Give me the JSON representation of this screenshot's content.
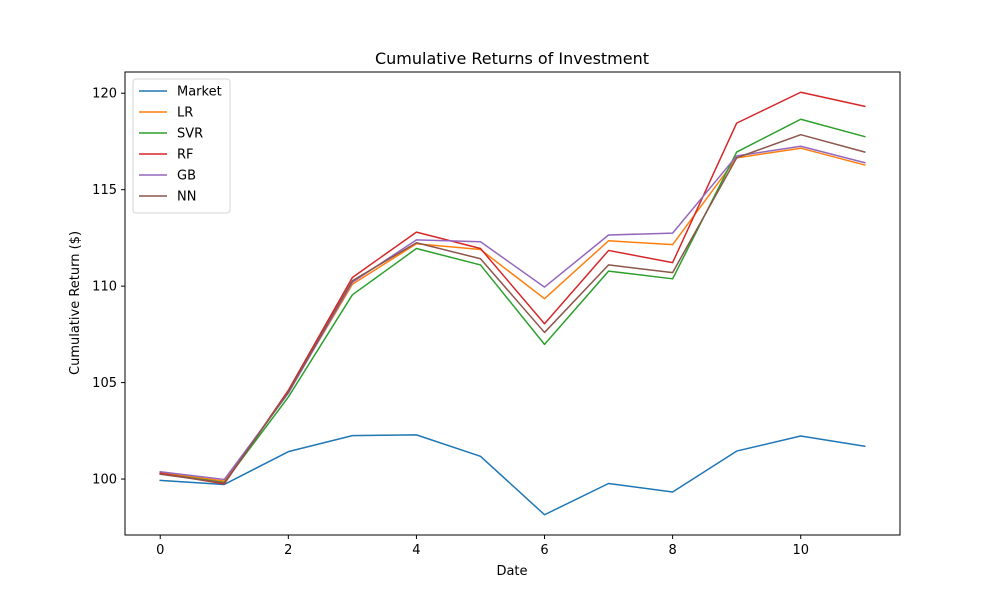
{
  "chart_data": {
    "type": "line",
    "title": "Cumulative Returns of Investment",
    "xlabel": "Date",
    "ylabel": "Cumulative Return ($)",
    "x": [
      0,
      1,
      2,
      3,
      4,
      5,
      6,
      7,
      8,
      9,
      10,
      11
    ],
    "xlim": [
      -0.55,
      11.55
    ],
    "ylim": [
      97.1,
      121.1
    ],
    "xticks": [
      0,
      2,
      4,
      6,
      8,
      10
    ],
    "yticks": [
      100,
      105,
      110,
      115,
      120
    ],
    "grid": false,
    "legend_position": "top-left",
    "series": [
      {
        "name": "Market",
        "color": "#1f77b4",
        "values": [
          99.93,
          99.72,
          101.42,
          102.25,
          102.29,
          101.18,
          98.15,
          99.77,
          99.33,
          101.45,
          102.23,
          101.7
        ]
      },
      {
        "name": "LR",
        "color": "#ff7f0e",
        "values": [
          100.33,
          99.9,
          104.5,
          110.1,
          112.2,
          111.9,
          109.35,
          112.35,
          112.15,
          116.65,
          117.15,
          116.28
        ]
      },
      {
        "name": "SVR",
        "color": "#2ca02c",
        "values": [
          100.28,
          99.82,
          104.25,
          109.55,
          111.95,
          111.1,
          106.98,
          110.78,
          110.38,
          116.95,
          118.65,
          117.75
        ]
      },
      {
        "name": "RF",
        "color": "#d62728",
        "values": [
          100.3,
          99.75,
          104.6,
          110.45,
          112.8,
          111.95,
          108.05,
          111.85,
          111.22,
          118.45,
          120.05,
          119.32
        ]
      },
      {
        "name": "GB",
        "color": "#9467bd",
        "values": [
          100.38,
          99.98,
          104.45,
          110.2,
          112.4,
          112.3,
          109.95,
          112.65,
          112.75,
          116.75,
          117.25,
          116.4
        ]
      },
      {
        "name": "NN",
        "color": "#8c564b",
        "values": [
          100.25,
          99.8,
          104.52,
          110.28,
          112.25,
          111.42,
          107.6,
          111.1,
          110.7,
          116.65,
          117.85,
          116.95
        ]
      }
    ]
  }
}
